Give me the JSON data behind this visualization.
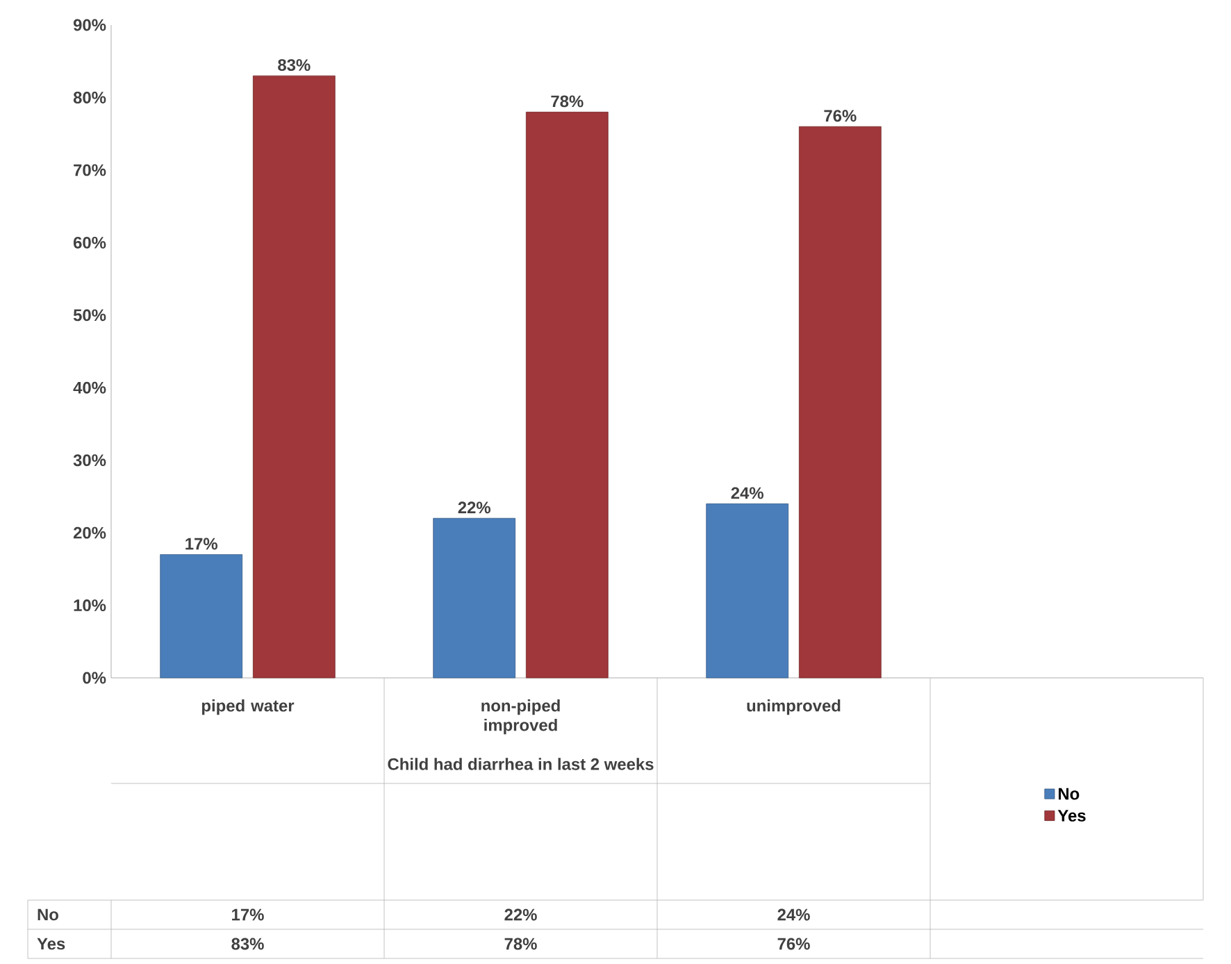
{
  "chart_data": {
    "type": "bar",
    "categories": [
      "piped water",
      "non-piped improved",
      "unimproved"
    ],
    "xlabel": "Child had diarrhea in last 2 weeks",
    "series": [
      {
        "name": "No",
        "color": "#4a7ebb",
        "values": [
          17,
          22,
          24
        ],
        "value_labels": [
          "17%",
          "22%",
          "24%"
        ]
      },
      {
        "name": "Yes",
        "color": "#a0373a",
        "values": [
          83,
          78,
          76
        ],
        "value_labels": [
          "83%",
          "78%",
          "76%"
        ]
      }
    ],
    "ylim": [
      0,
      90
    ],
    "yticks": [
      {
        "value": 0,
        "label": "0%"
      },
      {
        "value": 10,
        "label": "10%"
      },
      {
        "value": 20,
        "label": "20%"
      },
      {
        "value": 30,
        "label": "30%"
      },
      {
        "value": 40,
        "label": "40%"
      },
      {
        "value": 50,
        "label": "50%"
      },
      {
        "value": 60,
        "label": "60%"
      },
      {
        "value": 70,
        "label": "70%"
      },
      {
        "value": 80,
        "label": "80%"
      },
      {
        "value": 90,
        "label": "90%"
      }
    ],
    "legend": "bottom right",
    "grid": false
  }
}
